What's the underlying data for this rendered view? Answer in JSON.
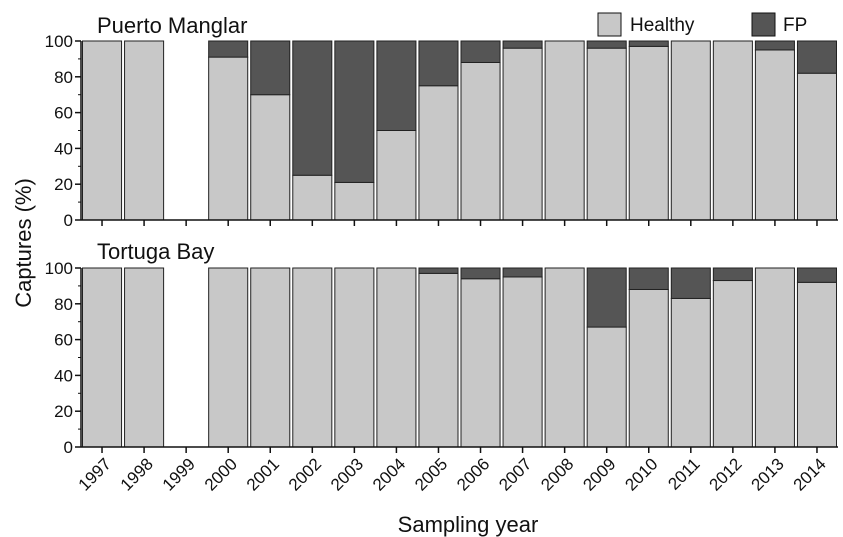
{
  "chart_data": {
    "type": "bar",
    "stacked": true,
    "ylabel": "Captures (%)",
    "xlabel": "Sampling year",
    "ylim": [
      0,
      100
    ],
    "yticks": [
      0,
      20,
      40,
      60,
      80,
      100
    ],
    "categories": [
      "1997",
      "1998",
      "1999",
      "2000",
      "2001",
      "2002",
      "2003",
      "2004",
      "2005",
      "2006",
      "2007",
      "2008",
      "2009",
      "2010",
      "2011",
      "2012",
      "2013",
      "2014"
    ],
    "legend": {
      "position": "top-right",
      "entries": [
        {
          "name": "Healthy",
          "color": "#c8c8c8"
        },
        {
          "name": "FP",
          "color": "#555555"
        }
      ]
    },
    "panels": [
      {
        "title": "Puerto Manglar",
        "series": [
          {
            "name": "Healthy",
            "color": "#c8c8c8",
            "values": [
              100,
              100,
              null,
              91,
              70,
              25,
              21,
              50,
              75,
              88,
              96,
              100,
              96,
              97,
              100,
              100,
              95,
              82
            ]
          },
          {
            "name": "FP",
            "color": "#555555",
            "values": [
              0,
              0,
              null,
              9,
              30,
              75,
              79,
              50,
              25,
              12,
              4,
              0,
              4,
              3,
              0,
              0,
              5,
              18
            ]
          }
        ]
      },
      {
        "title": "Tortuga Bay",
        "series": [
          {
            "name": "Healthy",
            "color": "#c8c8c8",
            "values": [
              100,
              100,
              null,
              100,
              100,
              100,
              100,
              100,
              97,
              94,
              95,
              100,
              67,
              88,
              83,
              93,
              100,
              92
            ]
          },
          {
            "name": "FP",
            "color": "#555555",
            "values": [
              0,
              0,
              null,
              0,
              0,
              0,
              0,
              0,
              3,
              6,
              5,
              0,
              33,
              12,
              17,
              7,
              0,
              8
            ]
          }
        ]
      }
    ]
  }
}
